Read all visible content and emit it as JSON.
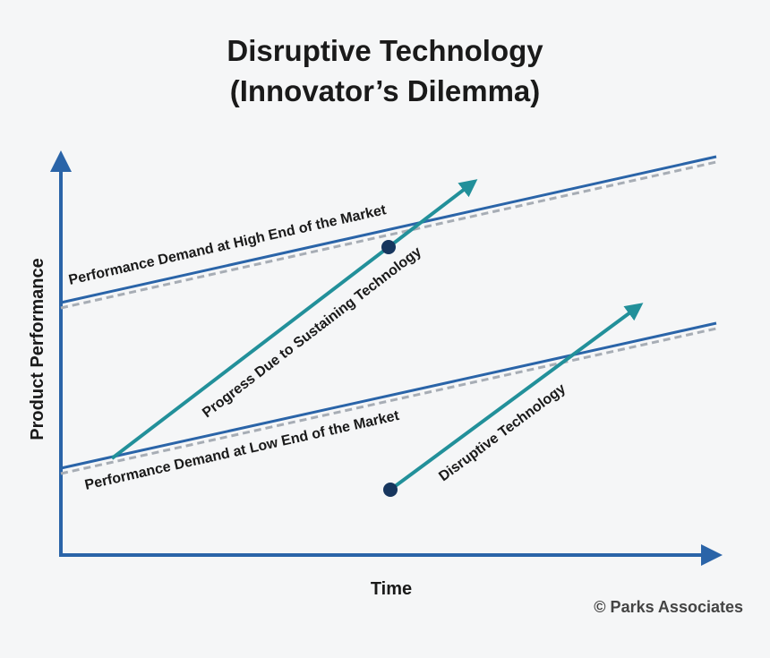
{
  "title": {
    "line1": "Disruptive Technology",
    "line2": "(Innovator’s Dilemma)"
  },
  "axes": {
    "x_label": "Time",
    "y_label": "Product Performance"
  },
  "lines": {
    "high_end": "Performance Demand at High End of the Market",
    "low_end": "Performance Demand at Low End of the Market",
    "sustaining": "Progress Due to Sustaining Technology",
    "disruptive": "Disruptive Technology"
  },
  "credit": "© Parks Associates",
  "colors": {
    "axis": "#2a64a8",
    "demand_line": "#2a64a8",
    "dashed_shadow": "#a7adb5",
    "progress_arrow": "#22909a",
    "dot": "#17365e"
  }
}
